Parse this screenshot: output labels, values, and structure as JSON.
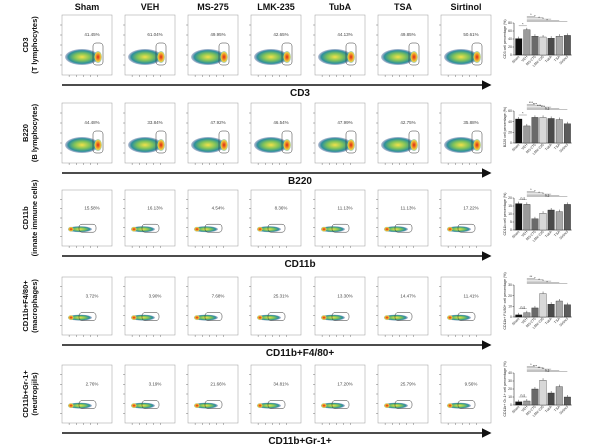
{
  "columns": [
    "Sham",
    "VEH",
    "MS-275",
    "LMK-235",
    "TubA",
    "TSA",
    "Sirtinol"
  ],
  "rows": [
    {
      "label_line1": "CD3",
      "label_line2": "(T lymphocytes)",
      "axis_label": "CD3",
      "percentages": [
        "41.45%",
        "61.04%",
        "49.95%",
        "42.65%",
        "44.13%",
        "49.85%",
        "50.61%"
      ],
      "plot_type": "wide"
    },
    {
      "label_line1": "B220",
      "label_line2": "(B lymphocytes)",
      "axis_label": "B220",
      "percentages": [
        "44.48%",
        "33.84%",
        "47.92%",
        "46.54%",
        "47.99%",
        "42.75%",
        "35.88%"
      ],
      "plot_type": "wide"
    },
    {
      "label_line1": "CD11b",
      "label_line2": "(innate immune cells)",
      "axis_label": "CD11b",
      "percentages": [
        "15.58%",
        "16.13%",
        "4.54%",
        "8.36%",
        "11.13%",
        "11.13%",
        "17.22%"
      ],
      "plot_type": "narrow"
    },
    {
      "label_line1": "CD11b+F4/80+",
      "label_line2": "(macrophages)",
      "axis_label": "CD11b+F4/80+",
      "percentages": [
        "3.72%",
        "3.90%",
        "7.68%",
        "25.31%",
        "13.30%",
        "14.47%",
        "11.41%"
      ],
      "plot_type": "narrow"
    },
    {
      "label_line1": "CD11b+Gr-1+",
      "label_line2": "(neutropjils)",
      "axis_label": "CD11b+Gr-1+",
      "percentages": [
        "2.76%",
        "3.19%",
        "21.66%",
        "34.81%",
        "17.20%",
        "25.79%",
        "9.56%"
      ],
      "plot_type": "narrow"
    }
  ],
  "chart_data": [
    {
      "type": "bar",
      "categories": [
        "Sham",
        "VEH",
        "MS-275",
        "LMK-235",
        "TubA",
        "TSA",
        "Sirtinol"
      ],
      "values": [
        41,
        63,
        47,
        45,
        42,
        47,
        49
      ],
      "ylabel": "CD3 cell percentage (%)",
      "ylim": [
        0,
        80
      ],
      "yticks": [
        "0",
        "20",
        "40",
        "60",
        "80"
      ],
      "significance": [
        {
          "a": 0,
          "b": 1,
          "label": "*"
        },
        {
          "a": 1,
          "b": 2,
          "label": "*"
        },
        {
          "a": 1,
          "b": 3,
          "label": "*"
        },
        {
          "a": 1,
          "b": 4,
          "label": "*"
        },
        {
          "a": 1,
          "b": 5,
          "label": "*"
        },
        {
          "a": 1,
          "b": 6,
          "label": "*"
        }
      ]
    },
    {
      "type": "bar",
      "categories": [
        "Sham",
        "VEH",
        "MS-275",
        "LMK-235",
        "TubA",
        "TSA",
        "Sirtinol"
      ],
      "values": [
        45,
        32,
        48,
        48,
        46,
        44,
        36
      ],
      "ylabel": "B220 cell percentage (%)",
      "ylim": [
        0,
        60
      ],
      "yticks": [
        "0",
        "20",
        "40",
        "60"
      ],
      "significance": [
        {
          "a": 0,
          "b": 1,
          "label": "*"
        },
        {
          "a": 1,
          "b": 2,
          "label": "***"
        },
        {
          "a": 1,
          "b": 3,
          "label": "***"
        },
        {
          "a": 1,
          "b": 4,
          "label": "***"
        },
        {
          "a": 1,
          "b": 5,
          "label": "***"
        },
        {
          "a": 1,
          "b": 6,
          "label": "n.s"
        }
      ]
    },
    {
      "type": "bar",
      "categories": [
        "Sham",
        "VEH",
        "MS-275",
        "LMK-235",
        "TubA",
        "TSA",
        "Sirtinol"
      ],
      "values": [
        16.5,
        16,
        7,
        10.5,
        12.5,
        11.5,
        16
      ],
      "ylabel": "CD11b cell percentage (%)",
      "ylim": [
        0,
        20
      ],
      "yticks": [
        "0",
        "5",
        "10",
        "15",
        "20"
      ],
      "significance": [
        {
          "a": 0,
          "b": 1,
          "label": "n.s"
        },
        {
          "a": 1,
          "b": 2,
          "label": "*"
        },
        {
          "a": 1,
          "b": 3,
          "label": "*"
        },
        {
          "a": 1,
          "b": 4,
          "label": "*"
        },
        {
          "a": 1,
          "b": 5,
          "label": "*"
        },
        {
          "a": 1,
          "b": 6,
          "label": "n.s"
        }
      ]
    },
    {
      "type": "bar",
      "categories": [
        "Sham",
        "VEH",
        "MS-275",
        "LMK-235",
        "TubA",
        "TSA",
        "Sirtinol"
      ],
      "values": [
        2,
        4,
        8.5,
        22,
        12,
        15,
        11.5
      ],
      "ylabel": "CD11b+ F4/80+ cell percentage (%)",
      "ylim": [
        0,
        30
      ],
      "yticks": [
        "0",
        "10",
        "20",
        "30"
      ],
      "significance": [
        {
          "a": 0,
          "b": 1,
          "label": "n.s"
        },
        {
          "a": 1,
          "b": 2,
          "label": "**"
        },
        {
          "a": 1,
          "b": 3,
          "label": "*"
        },
        {
          "a": 1,
          "b": 4,
          "label": "*"
        },
        {
          "a": 1,
          "b": 5,
          "label": "*"
        },
        {
          "a": 1,
          "b": 6,
          "label": "*"
        }
      ]
    },
    {
      "type": "bar",
      "categories": [
        "Sham",
        "VEH",
        "MS-275",
        "LMK-235",
        "TubA",
        "TSA",
        "Sirtinol"
      ],
      "values": [
        4,
        5,
        20,
        31,
        15,
        23,
        10
      ],
      "ylabel": "CD11b+ Gr-1+ cell percentage (%)",
      "ylim": [
        0,
        40
      ],
      "yticks": [
        "0",
        "10",
        "20",
        "30",
        "40"
      ],
      "significance": [
        {
          "a": 0,
          "b": 1,
          "label": "n.s"
        },
        {
          "a": 1,
          "b": 2,
          "label": "*"
        },
        {
          "a": 1,
          "b": 3,
          "label": "***"
        },
        {
          "a": 1,
          "b": 4,
          "label": "**"
        },
        {
          "a": 1,
          "b": 5,
          "label": "**"
        },
        {
          "a": 1,
          "b": 6,
          "label": "n.s"
        }
      ]
    }
  ],
  "colors": {
    "bars": [
      "#111111",
      "#9a9a9a",
      "#6a6a6a",
      "#d8d8d8",
      "#4a4a4a",
      "#a8a8a8",
      "#5c5c5c"
    ],
    "density_low": "#2f8f9a",
    "density_mid": "#e6d84a",
    "density_high": "#d8231c"
  }
}
